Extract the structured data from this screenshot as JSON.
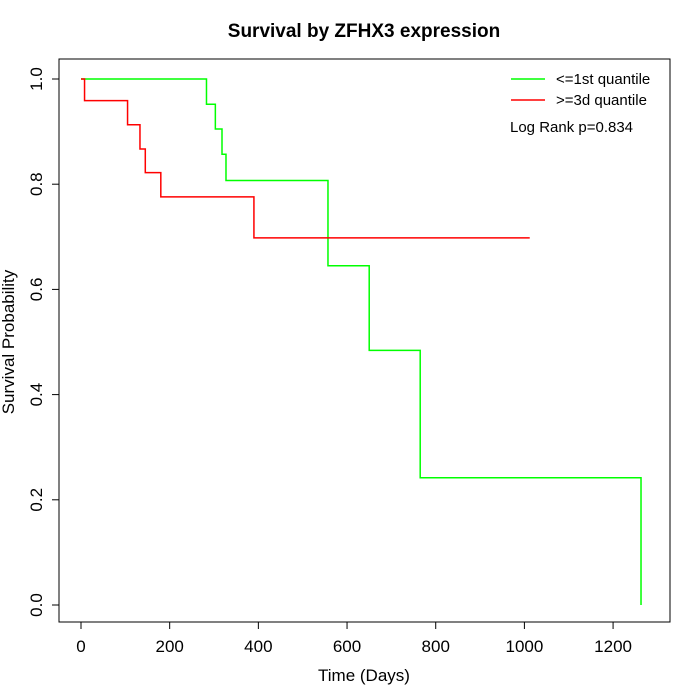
{
  "chart_data": {
    "type": "line",
    "subtype": "kaplan-meier step",
    "title": "Survival by ZFHX3 expression",
    "xlabel": "Time (Days)",
    "ylabel": "Survival Probability",
    "xlim": [
      0,
      1270
    ],
    "ylim": [
      0,
      1.0
    ],
    "x_ticks": [
      0,
      200,
      400,
      600,
      800,
      1000,
      1200
    ],
    "y_ticks": [
      0.0,
      0.2,
      0.4,
      0.6,
      0.8,
      1.0
    ],
    "x_tick_labels": [
      "0",
      "200",
      "400",
      "600",
      "800",
      "1000",
      "1200"
    ],
    "y_tick_labels": [
      "0.0",
      "0.2",
      "0.4",
      "0.6",
      "0.8",
      "1.0"
    ],
    "grid": false,
    "legend_position": "top-right",
    "annotation": "Log Rank p=0.834",
    "series": [
      {
        "name": "<=1st quantile",
        "color": "#00ff00",
        "x": [
          0,
          283,
          303,
          318,
          327,
          557,
          650,
          765,
          1263,
          1263
        ],
        "y": [
          1.0,
          0.952,
          0.905,
          0.857,
          0.807,
          0.645,
          0.484,
          0.242,
          0.242,
          0.0
        ]
      },
      {
        "name": ">=3d quantile",
        "color": "#ff0000",
        "x": [
          0,
          8,
          105,
          133,
          145,
          180,
          390,
          1012
        ],
        "y": [
          1.0,
          0.959,
          0.913,
          0.867,
          0.822,
          0.776,
          0.698,
          0.698
        ]
      }
    ]
  }
}
